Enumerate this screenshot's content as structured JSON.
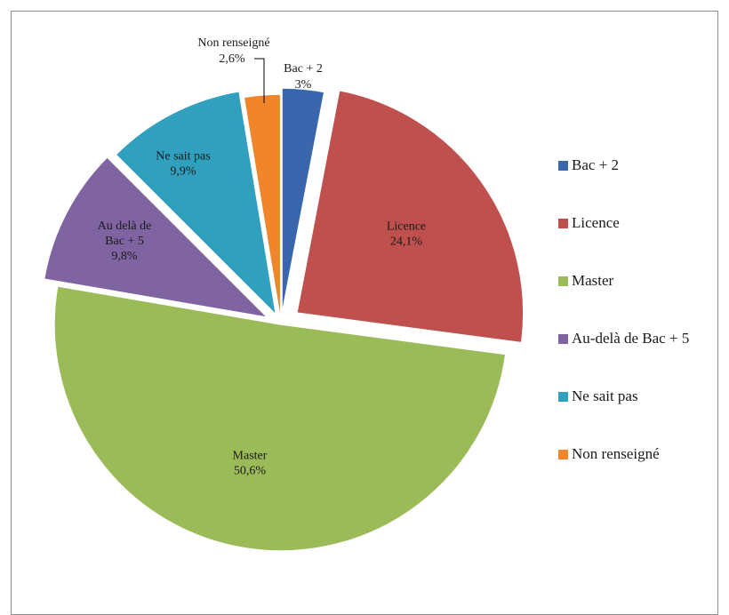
{
  "chart_data": {
    "type": "pie",
    "title": "",
    "slices": [
      {
        "label": "Bac + 2",
        "data_label": "Bac + 2",
        "value": 3.0,
        "value_label": "3%",
        "color": "#3a66ad"
      },
      {
        "label": "Licence",
        "data_label": "Licence",
        "value": 24.1,
        "value_label": "24,1%",
        "color": "#c0504d"
      },
      {
        "label": "Master",
        "data_label": "Master",
        "value": 50.6,
        "value_label": "50,6%",
        "color": "#9bbb59"
      },
      {
        "label": "Au-delà de Bac + 5",
        "data_label": "Au delà de\nBac + 5",
        "value": 9.8,
        "value_label": "9,8%",
        "color": "#8064a2"
      },
      {
        "label": "Ne sait pas",
        "data_label": "Ne sait pas",
        "value": 9.9,
        "value_label": "9,9%",
        "color": "#31a0bf"
      },
      {
        "label": "Non renseigné",
        "data_label": "Non renseigné",
        "value": 2.6,
        "value_label": "2,6%",
        "color": "#f0852c"
      }
    ],
    "legend": {
      "position": "right"
    },
    "exploded": true
  }
}
